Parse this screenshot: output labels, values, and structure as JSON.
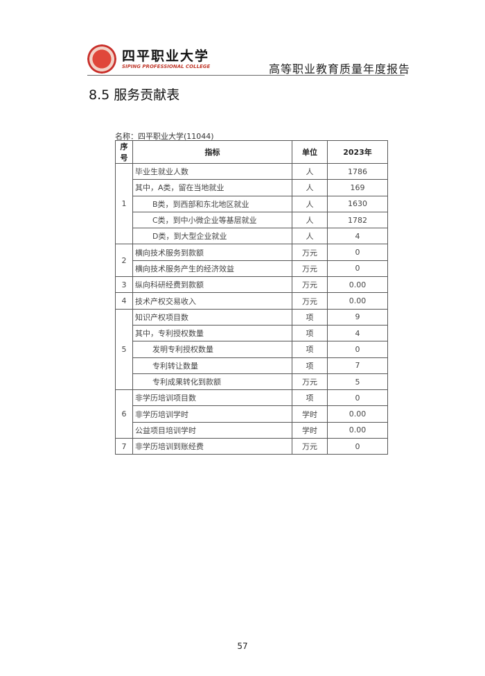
{
  "header": {
    "logo_cn": "四平职业大学",
    "logo_en": "SIPING PROFESSIONAL COLLEGE",
    "title": "高等职业教育质量年度报告"
  },
  "section_title": "8.5  服务贡献表",
  "table": {
    "caption": "名称：四平职业大学(11044)",
    "headers": [
      "序号",
      "指标",
      "单位",
      "2023年"
    ],
    "groups": [
      {
        "seq": "1",
        "rows": [
          {
            "indicator": "毕业生就业人数",
            "unit": "人",
            "value": "1786"
          },
          {
            "indicator": "其中，A类，留在当地就业",
            "unit": "人",
            "value": "169"
          },
          {
            "indicator": "B类，到西部和东北地区就业",
            "unit": "人",
            "value": "1630"
          },
          {
            "indicator": "C类，到中小微企业等基层就业",
            "unit": "人",
            "value": "1782"
          },
          {
            "indicator": "D类，到大型企业就业",
            "unit": "人",
            "value": "4"
          }
        ]
      },
      {
        "seq": "2",
        "rows": [
          {
            "indicator": "横向技术服务到款额",
            "unit": "万元",
            "value": "0"
          },
          {
            "indicator": "横向技术服务产生的经济效益",
            "unit": "万元",
            "value": "0"
          }
        ]
      },
      {
        "seq": "3",
        "rows": [
          {
            "indicator": "纵向科研经费到款额",
            "unit": "万元",
            "value": "0.00"
          }
        ]
      },
      {
        "seq": "4",
        "rows": [
          {
            "indicator": "技术产权交易收入",
            "unit": "万元",
            "value": "0.00"
          }
        ]
      },
      {
        "seq": "5",
        "rows": [
          {
            "indicator": "知识产权项目数",
            "unit": "项",
            "value": "9"
          },
          {
            "indicator": "其中，专利授权数量",
            "unit": "项",
            "value": "4"
          },
          {
            "indicator": "发明专利授权数量",
            "unit": "项",
            "value": "0"
          },
          {
            "indicator": "专利转让数量",
            "unit": "项",
            "value": "7"
          },
          {
            "indicator": "专利成果转化到款额",
            "unit": "万元",
            "value": "5"
          }
        ]
      },
      {
        "seq": "6",
        "rows": [
          {
            "indicator": "非学历培训项目数",
            "unit": "项",
            "value": "0"
          },
          {
            "indicator": "非学历培训学时",
            "unit": "学时",
            "value": "0.00"
          },
          {
            "indicator": "公益项目培训学时",
            "unit": "学时",
            "value": "0.00"
          }
        ]
      },
      {
        "seq": "7",
        "rows": [
          {
            "indicator": "非学历培训到账经费",
            "unit": "万元",
            "value": "0"
          }
        ]
      }
    ]
  },
  "page_number": "57"
}
